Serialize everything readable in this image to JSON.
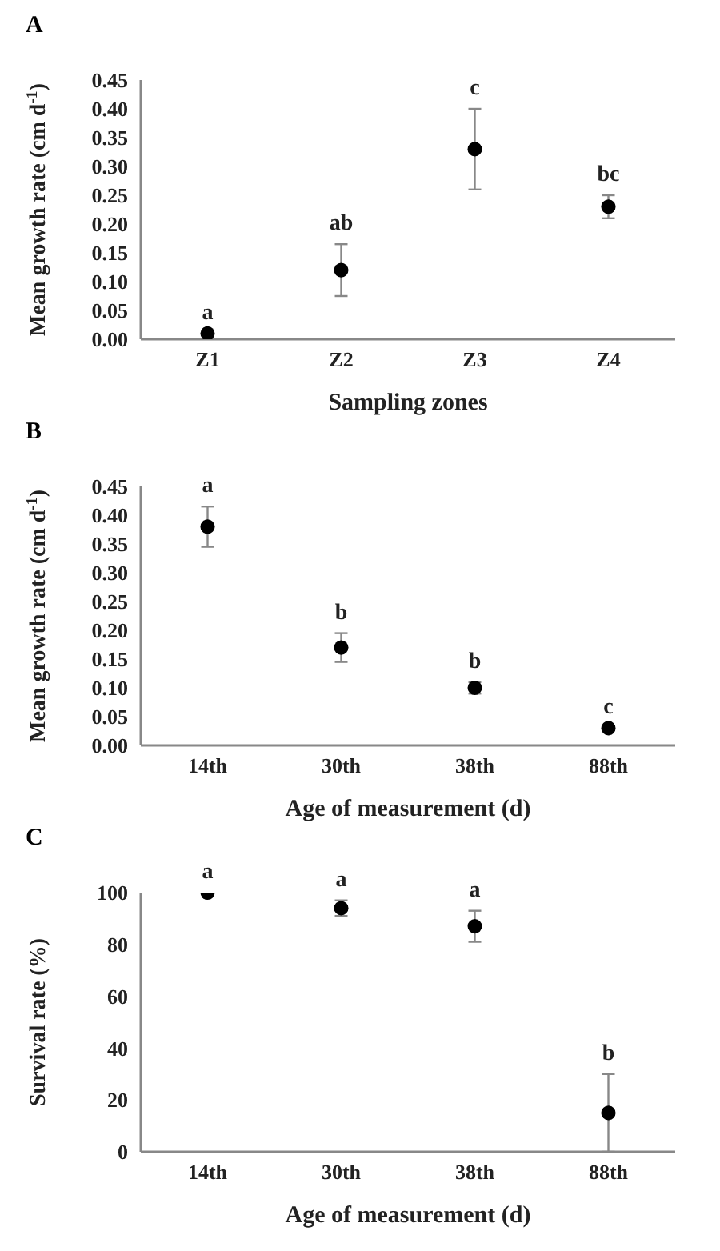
{
  "chart_data": [
    {
      "type": "scatter",
      "title": "A",
      "xlabel": "Sampling zones",
      "ylabel": "Mean growth rate (cm d$^{-1}$)",
      "categories": [
        "Z1",
        "Z2",
        "Z3",
        "Z4"
      ],
      "marker": "circle",
      "series": [
        {
          "color": "#000000",
          "values": [
            0.01,
            0.12,
            0.33,
            0.23
          ],
          "errors": [
            null,
            0.045,
            0.07,
            0.02
          ]
        }
      ],
      "ylim": [
        0,
        0.45
      ],
      "yticks": [
        {
          "value": 0,
          "label": "0.00"
        },
        {
          "value": 0.05,
          "label": "0.05"
        },
        {
          "value": 0.1,
          "label": "0.10"
        },
        {
          "value": 0.15,
          "label": "0.15"
        },
        {
          "value": 0.2,
          "label": "0.20"
        },
        {
          "value": 0.25,
          "label": "0.25"
        },
        {
          "value": 0.3,
          "label": "0.30"
        },
        {
          "value": 0.35,
          "label": "0.35"
        },
        {
          "value": 0.4,
          "label": "0.40"
        },
        {
          "value": 0.45,
          "label": "0.45"
        }
      ],
      "annotations": [
        {
          "text": "a",
          "x": "Z1",
          "y": 0.01
        },
        {
          "text": "ab",
          "x": "Z2",
          "y": 0.165
        },
        {
          "text": "c",
          "x": "Z3",
          "y": 0.4
        },
        {
          "text": "bc",
          "x": "Z4",
          "y": 0.25
        }
      ]
    },
    {
      "type": "scatter",
      "title": "B",
      "xlabel": "Age of measurement (d)",
      "ylabel": "Mean growth rate (cm d$^{-1}$)",
      "categories": [
        "14th",
        "30th",
        "38th",
        "88th"
      ],
      "marker": "circle",
      "series": [
        {
          "color": "#000000",
          "values": [
            0.38,
            0.17,
            0.1,
            0.03
          ],
          "errors": [
            0.035,
            0.025,
            0.01,
            null
          ]
        }
      ],
      "ylim": [
        0,
        0.45
      ],
      "yticks": [
        {
          "value": 0,
          "label": "0.00"
        },
        {
          "value": 0.05,
          "label": "0.05"
        },
        {
          "value": 0.1,
          "label": "0.10"
        },
        {
          "value": 0.15,
          "label": "0.15"
        },
        {
          "value": 0.2,
          "label": "0.20"
        },
        {
          "value": 0.25,
          "label": "0.25"
        },
        {
          "value": 0.3,
          "label": "0.30"
        },
        {
          "value": 0.35,
          "label": "0.35"
        },
        {
          "value": 0.4,
          "label": "0.40"
        },
        {
          "value": 0.45,
          "label": "0.45"
        }
      ],
      "annotations": [
        {
          "text": "a",
          "x": "14th",
          "y": 0.415
        },
        {
          "text": "b",
          "x": "30th",
          "y": 0.195
        },
        {
          "text": "b",
          "x": "38th",
          "y": 0.11
        },
        {
          "text": "c",
          "x": "88th",
          "y": 0.03
        }
      ]
    },
    {
      "type": "scatter",
      "title": "C",
      "xlabel": "Age of measurement (d)",
      "ylabel": "Survival rate (%)",
      "categories": [
        "14th",
        "30th",
        "38th",
        "88th"
      ],
      "marker": "circle",
      "series": [
        {
          "color": "#000000",
          "values": [
            100,
            94,
            87,
            15
          ],
          "errors": [
            null,
            3,
            6,
            15
          ]
        }
      ],
      "ylim": [
        0,
        100
      ],
      "yticks": [
        0,
        20,
        40,
        60,
        80,
        100
      ],
      "annotations": [
        {
          "text": "a",
          "x": "14th",
          "y": 100
        },
        {
          "text": "a",
          "x": "30th",
          "y": 97
        },
        {
          "text": "a",
          "x": "38th",
          "y": 93
        },
        {
          "text": "b",
          "x": "88th",
          "y": 30
        }
      ]
    }
  ]
}
